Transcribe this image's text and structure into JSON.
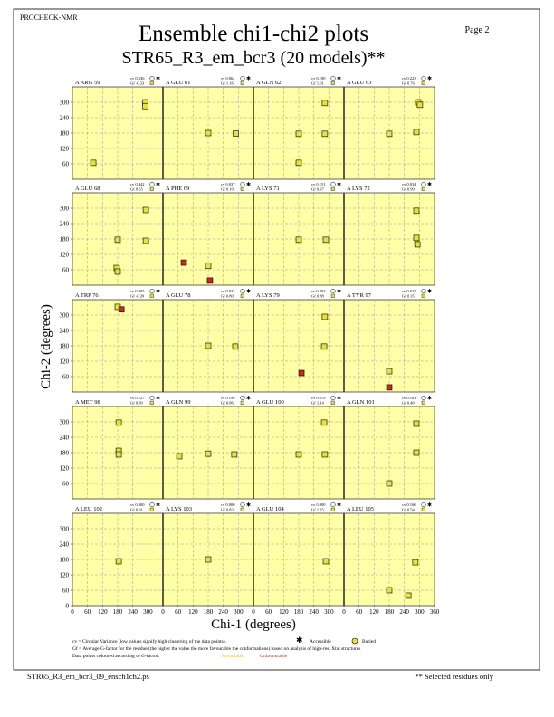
{
  "header": {
    "program": "PROCHECK-NMR",
    "page": "Page  2",
    "title": "Ensemble chi1-chi2 plots",
    "subtitle": "STR65_R3_em_bcr3 (20 models)**"
  },
  "chart_data": {
    "type": "scatter",
    "xlabel": "Chi-1 (degrees)",
    "ylabel": "Chi-2 (degrees)",
    "xlim": [
      0,
      360
    ],
    "ylim": [
      0,
      360
    ],
    "xticks": [
      0,
      60,
      120,
      180,
      240,
      300,
      360
    ],
    "yticks": [
      0,
      60,
      120,
      180,
      240,
      300,
      360
    ],
    "background": "#ffffa8",
    "grid": true,
    "panels": [
      {
        "residue": "A ARG 59",
        "cv": "cv 0.336",
        "gf": "Gf -0.33",
        "chi1": [
          83,
          290,
          290
        ],
        "chi2": [
          64,
          300,
          285
        ],
        "colors": [
          "#e8e040",
          "#e8e040",
          "#e8e040"
        ]
      },
      {
        "residue": "A GLU 61",
        "cv": "cv 0.062",
        "gf": "Gf  1.16",
        "chi1": [
          180,
          290
        ],
        "chi2": [
          180,
          178
        ],
        "colors": [
          "#e8e040",
          "#e8e040"
        ]
      },
      {
        "residue": "A GLN 62",
        "cv": "cv 0.190",
        "gf": "Gf  1.01",
        "chi1": [
          180,
          284,
          284,
          180
        ],
        "chi2": [
          177,
          177,
          297,
          64
        ],
        "colors": [
          "#e8e040",
          "#e8e040",
          "#e8e040",
          "#e8e040"
        ]
      },
      {
        "residue": "A GLU 63",
        "cv": "cv 0.223",
        "gf": "Gf  0.76",
        "chi1": [
          295,
          302,
          288,
          180
        ],
        "chi2": [
          300,
          290,
          184,
          177
        ],
        "colors": [
          "#e8e040",
          "#e8e040",
          "#e8e040",
          "#e8e040"
        ]
      },
      {
        "residue": "A GLU 68",
        "cv": "cv 0.442",
        "gf": "Gf  0.65",
        "chi1": [
          292,
          292,
          180,
          176,
          180
        ],
        "chi2": [
          293,
          173,
          177,
          67,
          53
        ],
        "colors": [
          "#e8e040",
          "#e8e040",
          "#e8e040",
          "#e8e040",
          "#e8e040"
        ]
      },
      {
        "residue": "A PHE 69",
        "cv": "cv 0.037",
        "gf": "Gf  0.10",
        "chi1": [
          83,
          180,
          187
        ],
        "chi2": [
          88,
          75,
          18
        ],
        "colors": [
          "#c8281e",
          "#e8e040",
          "#c8281e"
        ]
      },
      {
        "residue": "A LYS 71",
        "cv": "cv 0.151",
        "gf": "Gf  0.97",
        "chi1": [
          180,
          288
        ],
        "chi2": [
          177,
          177
        ],
        "colors": [
          "#e8e040",
          "#e8e040"
        ]
      },
      {
        "residue": "A LYS 72",
        "cv": "cv 0.034",
        "gf": "Gf  0.99",
        "chi1": [
          288,
          288,
          292
        ],
        "chi2": [
          290,
          184,
          159
        ],
        "colors": [
          "#e8e040",
          "#e8e040",
          "#e8e040"
        ]
      },
      {
        "residue": "A TRP 76",
        "cv": "cv 0.005",
        "gf": "Gf -0.39",
        "chi1": [
          180,
          195
        ],
        "chi2": [
          332,
          322
        ],
        "colors": [
          "#e8e040",
          "#c8281e"
        ]
      },
      {
        "residue": "A GLU 78",
        "cv": "cv 0.032",
        "gf": "Gf  0.80",
        "chi1": [
          180,
          288
        ],
        "chi2": [
          180,
          177
        ],
        "colors": [
          "#e8e040",
          "#e8e040"
        ]
      },
      {
        "residue": "A LYS 79",
        "cv": "cv 0.203",
        "gf": "Gf  0.88",
        "chi1": [
          284,
          281,
          191
        ],
        "chi2": [
          293,
          177,
          74
        ],
        "colors": [
          "#e8e040",
          "#e8e040",
          "#c8281e"
        ]
      },
      {
        "residue": "A TYR 97",
        "cv": "cv 0.015",
        "gf": "Gf  0.35",
        "chi1": [
          180,
          180
        ],
        "chi2": [
          81,
          18
        ],
        "colors": [
          "#e8e040",
          "#c8281e"
        ]
      },
      {
        "residue": "A MET 98",
        "cv": "cv 0.127",
        "gf": "Gf  0.89",
        "chi1": [
          184,
          184,
          184
        ],
        "chi2": [
          297,
          187,
          173
        ],
        "colors": [
          "#e8e040",
          "#e8e040",
          "#e8e040"
        ]
      },
      {
        "residue": "A GLN 99",
        "cv": "cv 0.199",
        "gf": "Gf  0.86",
        "chi1": [
          65,
          180,
          284
        ],
        "chi2": [
          166,
          176,
          173
        ],
        "colors": [
          "#e8e040",
          "#e8e040",
          "#e8e040"
        ]
      },
      {
        "residue": "A GLU 100",
        "cv": "cv 0.070",
        "gf": "Gf  1.14",
        "chi1": [
          281,
          180,
          284
        ],
        "chi2": [
          297,
          173,
          173
        ],
        "colors": [
          "#e8e040",
          "#e8e040",
          "#e8e040"
        ]
      },
      {
        "residue": "A GLN 101",
        "cv": "cv 0.101",
        "gf": "Gf  0.40",
        "chi1": [
          288,
          288,
          180
        ],
        "chi2": [
          293,
          180,
          60
        ],
        "colors": [
          "#e8e040",
          "#e8e040",
          "#e8e040"
        ]
      },
      {
        "residue": "A LEU 102",
        "cv": "cv 0.000",
        "gf": "Gf  0.91",
        "chi1": [
          184
        ],
        "chi2": [
          173
        ],
        "colors": [
          "#e8e040"
        ]
      },
      {
        "residue": "A LYS 103",
        "cv": "cv 0.000",
        "gf": "Gf  0.83",
        "chi1": [
          180
        ],
        "chi2": [
          180
        ],
        "colors": [
          "#e8e040"
        ]
      },
      {
        "residue": "A GLU 104",
        "cv": "cv 0.000",
        "gf": "Gf  1.25",
        "chi1": [
          288
        ],
        "chi2": [
          173
        ],
        "colors": [
          "#e8e040"
        ]
      },
      {
        "residue": "A LEU 105",
        "cv": "cv 0.166",
        "gf": "Gf  0.54",
        "chi1": [
          284,
          180,
          256
        ],
        "chi2": [
          169,
          60,
          39
        ],
        "colors": [
          "#e8e040",
          "#e8e040",
          "#e8e040"
        ]
      }
    ]
  },
  "legend": {
    "cv_note": "cv = Circular Variance (low values signify high clustering of the data points).",
    "accessible": "Accessible",
    "buried": "Buried",
    "gf_note": "Gf = Average G-factor for the residue (the higher the value the more favourable the conformations) based on analysis of high-res. Xtal structures",
    "colour_note": "Data points coloured according to G-factor:",
    "favourable": "Favourable",
    "unfavourable": "Unfavourable"
  },
  "footer": {
    "file": "STR65_R3_em_bcr3_09_ensch1ch2.ps",
    "note": "** Selected residues only"
  }
}
